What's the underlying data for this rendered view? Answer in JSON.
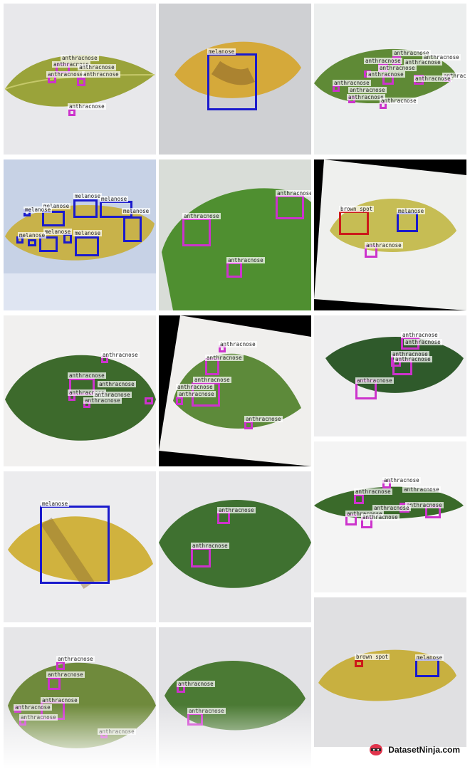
{
  "colors": {
    "anthracnose": "#cc33cc",
    "melanose": "#1a1acc",
    "brown_spot": "#cc1a1a"
  },
  "labels": {
    "anthracnose": "anthracnose",
    "melanose": "melanose",
    "brown_spot": "brown spot"
  },
  "brand": {
    "text": "DatasetNinja.com",
    "icon": "ninja-logo-icon"
  }
}
